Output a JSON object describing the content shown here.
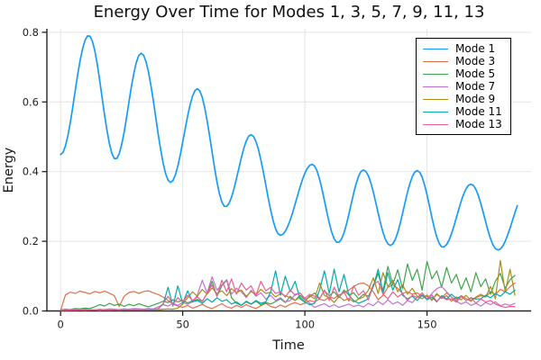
{
  "chart_data": {
    "type": "line",
    "title": "Energy Over Time for Modes 1, 3, 5, 7, 9, 11, 13",
    "xlabel": "Time",
    "ylabel": "Energy",
    "grid": true,
    "legend_position": "top-right",
    "xlim": [
      -5.6,
      192.6
    ],
    "ylim": [
      0,
      0.81
    ],
    "xticks": [
      {
        "v": 0,
        "label": "0"
      },
      {
        "v": 50,
        "label": "50"
      },
      {
        "v": 100,
        "label": "100"
      },
      {
        "v": 150,
        "label": "150"
      }
    ],
    "yticks": [
      {
        "v": 0.0,
        "label": "0.0"
      },
      {
        "v": 0.2,
        "label": "0.2"
      },
      {
        "v": 0.4,
        "label": "0.4"
      },
      {
        "v": 0.6,
        "label": "0.6"
      },
      {
        "v": 0.8,
        "label": "0.8"
      }
    ],
    "series": [
      {
        "name": "Mode 1",
        "color": "#169cf8",
        "width": 1.7,
        "interp": "cosine",
        "t_end": 187,
        "keypoints": [
          [
            0,
            0.449
          ],
          [
            11.5,
            0.791
          ],
          [
            22.5,
            0.436
          ],
          [
            33,
            0.74
          ],
          [
            45,
            0.369
          ],
          [
            56,
            0.638
          ],
          [
            67.5,
            0.299
          ],
          [
            78,
            0.506
          ],
          [
            90,
            0.217
          ],
          [
            103,
            0.421
          ],
          [
            113.5,
            0.196
          ],
          [
            124,
            0.405
          ],
          [
            135,
            0.188
          ],
          [
            146,
            0.403
          ],
          [
            156.5,
            0.183
          ],
          [
            168,
            0.364
          ],
          [
            179,
            0.175
          ],
          [
            191,
            0.345
          ]
        ]
      },
      {
        "name": "Mode 3",
        "color": "#e26f46",
        "width": 1.2,
        "t_start": 0,
        "t_step": 2,
        "values": [
          0.001,
          0.046,
          0.054,
          0.05,
          0.057,
          0.053,
          0.049,
          0.056,
          0.052,
          0.057,
          0.051,
          0.044,
          0.013,
          0.042,
          0.053,
          0.056,
          0.05,
          0.056,
          0.058,
          0.052,
          0.047,
          0.04,
          0.03,
          0.02,
          0.014,
          0.01,
          0.016,
          0.008,
          0.013,
          0.019,
          0.011,
          0.007,
          0.014,
          0.021,
          0.012,
          0.008,
          0.016,
          0.01,
          0.018,
          0.012,
          0.007,
          0.015,
          0.022,
          0.013,
          0.009,
          0.017,
          0.011,
          0.019,
          0.024,
          0.018,
          0.022,
          0.03,
          0.026,
          0.034,
          0.03,
          0.04,
          0.036,
          0.046,
          0.052,
          0.06,
          0.07,
          0.078,
          0.08,
          0.072,
          0.055,
          0.032,
          0.045,
          0.068,
          0.075,
          0.065,
          0.05,
          0.055,
          0.048,
          0.052,
          0.042,
          0.042,
          0.033,
          0.047,
          0.038,
          0.052,
          0.04,
          0.031,
          0.044,
          0.036,
          0.028,
          0.04,
          0.048,
          0.04,
          0.055,
          0.047,
          0.062,
          0.055,
          0.07,
          0.08
        ]
      },
      {
        "name": "Mode 5",
        "color": "#3da44d",
        "width": 1.2,
        "t_start": 0,
        "t_step": 2,
        "values": [
          0.003,
          0.005,
          0.004,
          0.007,
          0.006,
          0.008,
          0.007,
          0.012,
          0.018,
          0.014,
          0.022,
          0.016,
          0.02,
          0.013,
          0.019,
          0.015,
          0.021,
          0.016,
          0.012,
          0.017,
          0.022,
          0.028,
          0.024,
          0.032,
          0.026,
          0.03,
          0.023,
          0.029,
          0.033,
          0.027,
          0.05,
          0.085,
          0.042,
          0.072,
          0.088,
          0.038,
          0.022,
          0.016,
          0.026,
          0.019,
          0.028,
          0.017,
          0.024,
          0.02,
          0.027,
          0.035,
          0.024,
          0.042,
          0.03,
          0.045,
          0.032,
          0.04,
          0.052,
          0.036,
          0.058,
          0.044,
          0.055,
          0.038,
          0.06,
          0.046,
          0.052,
          0.035,
          0.048,
          0.042,
          0.07,
          0.108,
          0.058,
          0.128,
          0.076,
          0.118,
          0.064,
          0.135,
          0.088,
          0.12,
          0.06,
          0.142,
          0.092,
          0.115,
          0.068,
          0.125,
          0.08,
          0.105,
          0.062,
          0.095,
          0.055,
          0.11,
          0.07,
          0.092,
          0.048,
          0.085,
          0.108,
          0.065,
          0.09,
          0.102
        ]
      },
      {
        "name": "Mode 7",
        "color": "#c271d2",
        "width": 1.2,
        "t_start": 0,
        "t_step": 2,
        "values": [
          0.002,
          0.003,
          0.002,
          0.004,
          0.003,
          0.005,
          0.004,
          0.003,
          0.005,
          0.004,
          0.006,
          0.005,
          0.004,
          0.006,
          0.005,
          0.007,
          0.006,
          0.005,
          0.007,
          0.006,
          0.012,
          0.018,
          0.014,
          0.022,
          0.016,
          0.024,
          0.019,
          0.026,
          0.045,
          0.088,
          0.052,
          0.098,
          0.06,
          0.075,
          0.09,
          0.048,
          0.065,
          0.055,
          0.038,
          0.06,
          0.042,
          0.052,
          0.034,
          0.045,
          0.03,
          0.038,
          0.026,
          0.03,
          0.048,
          0.052,
          0.035,
          0.022,
          0.01,
          0.016,
          0.021,
          0.012,
          0.018,
          0.01,
          0.015,
          0.02,
          0.013,
          0.017,
          0.011,
          0.022,
          0.015,
          0.028,
          0.018,
          0.032,
          0.02,
          0.026,
          0.016,
          0.03,
          0.024,
          0.04,
          0.046,
          0.034,
          0.05,
          0.064,
          0.07,
          0.055,
          0.04,
          0.028,
          0.02,
          0.026,
          0.016,
          0.022,
          0.014,
          0.024,
          0.018,
          0.026,
          0.015,
          0.02,
          0.016,
          0.022
        ]
      },
      {
        "name": "Mode 9",
        "color": "#ac8d18",
        "width": 1.2,
        "t_start": 0,
        "t_step": 2,
        "values": [
          0.002,
          0.002,
          0.003,
          0.002,
          0.003,
          0.002,
          0.003,
          0.003,
          0.002,
          0.003,
          0.003,
          0.004,
          0.003,
          0.004,
          0.003,
          0.004,
          0.004,
          0.005,
          0.004,
          0.005,
          0.004,
          0.005,
          0.006,
          0.005,
          0.008,
          0.02,
          0.038,
          0.055,
          0.042,
          0.062,
          0.048,
          0.066,
          0.05,
          0.058,
          0.044,
          0.064,
          0.052,
          0.06,
          0.042,
          0.056,
          0.046,
          0.062,
          0.05,
          0.054,
          0.04,
          0.05,
          0.044,
          0.038,
          0.03,
          0.04,
          0.026,
          0.044,
          0.035,
          0.08,
          0.045,
          0.038,
          0.024,
          0.042,
          0.03,
          0.036,
          0.026,
          0.034,
          0.04,
          0.06,
          0.095,
          0.05,
          0.11,
          0.07,
          0.088,
          0.055,
          0.075,
          0.048,
          0.065,
          0.042,
          0.035,
          0.046,
          0.03,
          0.05,
          0.036,
          0.044,
          0.028,
          0.04,
          0.032,
          0.045,
          0.03,
          0.038,
          0.044,
          0.04,
          0.07,
          0.035,
          0.145,
          0.055,
          0.12,
          0.045
        ]
      },
      {
        "name": "Mode 11",
        "color": "#00a9ad",
        "width": 1.2,
        "t_start": 0,
        "t_step": 2,
        "values": [
          0.002,
          0.002,
          0.002,
          0.003,
          0.002,
          0.003,
          0.002,
          0.003,
          0.003,
          0.002,
          0.003,
          0.003,
          0.002,
          0.003,
          0.003,
          0.004,
          0.003,
          0.004,
          0.003,
          0.004,
          0.006,
          0.02,
          0.068,
          0.014,
          0.072,
          0.022,
          0.058,
          0.026,
          0.03,
          0.022,
          0.035,
          0.025,
          0.038,
          0.028,
          0.032,
          0.02,
          0.026,
          0.016,
          0.028,
          0.02,
          0.03,
          0.022,
          0.026,
          0.055,
          0.115,
          0.045,
          0.1,
          0.055,
          0.085,
          0.035,
          0.025,
          0.018,
          0.022,
          0.06,
          0.115,
          0.05,
          0.12,
          0.055,
          0.105,
          0.045,
          0.03,
          0.022,
          0.028,
          0.035,
          0.07,
          0.12,
          0.05,
          0.11,
          0.06,
          0.09,
          0.045,
          0.035,
          0.042,
          0.03,
          0.046,
          0.032,
          0.04,
          0.026,
          0.044,
          0.034,
          0.048,
          0.036,
          0.042,
          0.03,
          0.038,
          0.034,
          0.035,
          0.045,
          0.038,
          0.05,
          0.042,
          0.055,
          0.048,
          0.06
        ]
      },
      {
        "name": "Mode 13",
        "color": "#ed5d92",
        "width": 1.2,
        "t_start": 0,
        "t_step": 2,
        "values": [
          0.002,
          0.002,
          0.003,
          0.002,
          0.003,
          0.002,
          0.003,
          0.003,
          0.002,
          0.003,
          0.002,
          0.003,
          0.003,
          0.004,
          0.003,
          0.004,
          0.003,
          0.004,
          0.004,
          0.005,
          0.006,
          0.022,
          0.042,
          0.018,
          0.038,
          0.026,
          0.045,
          0.03,
          0.04,
          0.028,
          0.05,
          0.075,
          0.042,
          0.088,
          0.055,
          0.092,
          0.048,
          0.08,
          0.06,
          0.072,
          0.045,
          0.085,
          0.058,
          0.068,
          0.05,
          0.055,
          0.04,
          0.06,
          0.045,
          0.052,
          0.036,
          0.048,
          0.042,
          0.035,
          0.06,
          0.03,
          0.068,
          0.04,
          0.055,
          0.028,
          0.072,
          0.045,
          0.058,
          0.032,
          0.077,
          0.085,
          0.048,
          0.035,
          0.055,
          0.04,
          0.05,
          0.03,
          0.045,
          0.038,
          0.052,
          0.034,
          0.046,
          0.028,
          0.04,
          0.032,
          0.035,
          0.025,
          0.042,
          0.03,
          0.038,
          0.022,
          0.034,
          0.026,
          0.03,
          0.02,
          0.014,
          0.01,
          0.013,
          0.012
        ]
      }
    ]
  }
}
